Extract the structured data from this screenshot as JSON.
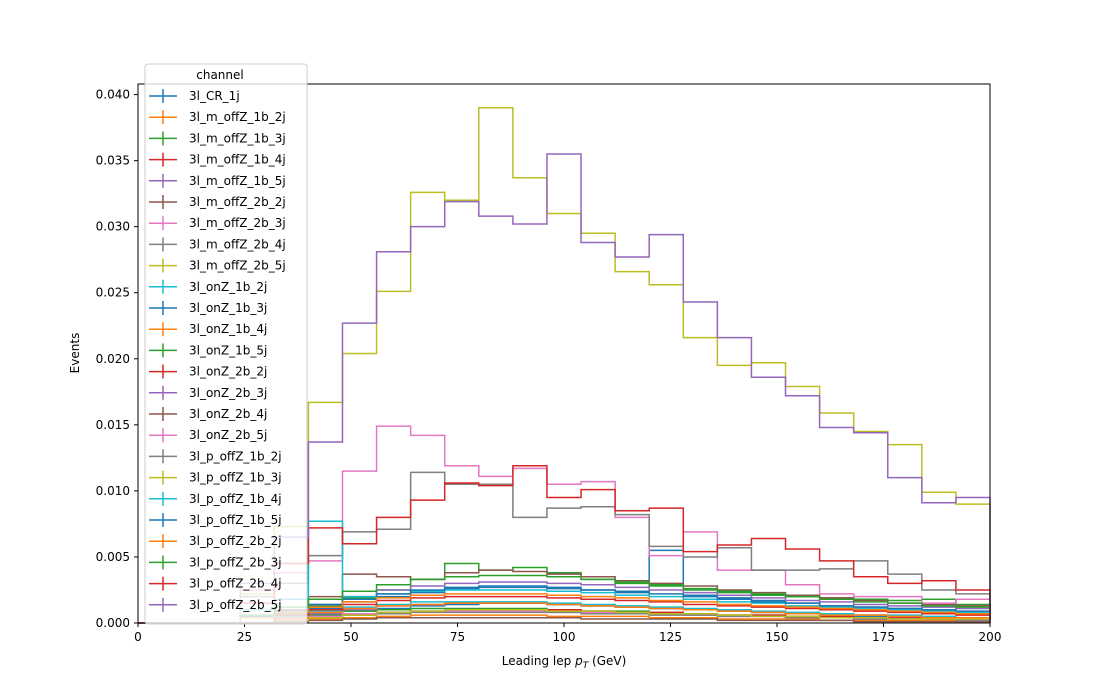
{
  "chart_data": {
    "type": "line",
    "style": "step-histogram",
    "xlabel_prefix": "Leading lep ",
    "xlabel_var": "p",
    "xlabel_sub": "T",
    "xlabel_suffix": " (GeV)",
    "ylabel": "Events",
    "xlim": [
      0,
      200
    ],
    "ylim": [
      0,
      0.0408
    ],
    "xticks": [
      0,
      25,
      50,
      75,
      100,
      125,
      150,
      175,
      200
    ],
    "yticks": [
      0.0,
      0.005,
      0.01,
      0.015,
      0.02,
      0.025,
      0.03,
      0.035,
      0.04
    ],
    "ytick_labels": [
      "0.000",
      "0.005",
      "0.010",
      "0.015",
      "0.020",
      "0.025",
      "0.030",
      "0.035",
      "0.040"
    ],
    "grid": false,
    "legend_title": "channel",
    "legend_position": "upper-left",
    "bin_edges": [
      0,
      8,
      16,
      24,
      32,
      40,
      48,
      56,
      64,
      72,
      80,
      88,
      96,
      104,
      112,
      120,
      128,
      136,
      144,
      152,
      160,
      168,
      176,
      184,
      192,
      200
    ],
    "series": [
      {
        "name": "3l_CR_1j",
        "color": "#1f77b4",
        "values": [
          0,
          0,
          0,
          0,
          0.0003,
          0.0005,
          0.0009,
          0.0011,
          0.0013,
          0.0014,
          0.0015,
          0.0015,
          0.0014,
          0.0013,
          0.0012,
          0.0011,
          0.001,
          0.0009,
          0.0008,
          0.0007,
          0.0006,
          0.0005,
          0.0005,
          0.0004,
          0.0004
        ]
      },
      {
        "name": "3l_m_offZ_1b_2j",
        "color": "#ff7f0e",
        "values": [
          0,
          0,
          0,
          0,
          0.0002,
          0.0003,
          0.0004,
          0.0005,
          0.0006,
          0.0006,
          0.0006,
          0.0006,
          0.0005,
          0.0005,
          0.0005,
          0.0004,
          0.0004,
          0.0003,
          0.0003,
          0.0003,
          0.0002,
          0.0002,
          0.0002,
          0.0002,
          0.0001
        ]
      },
      {
        "name": "3l_m_offZ_1b_3j",
        "color": "#2ca02c",
        "values": [
          0,
          0,
          0,
          0,
          0.0003,
          0.0006,
          0.0009,
          0.001,
          0.0011,
          0.0011,
          0.0011,
          0.0011,
          0.001,
          0.0009,
          0.0009,
          0.0008,
          0.0007,
          0.0006,
          0.0006,
          0.0005,
          0.0005,
          0.0004,
          0.0004,
          0.0003,
          0.0003
        ]
      },
      {
        "name": "3l_m_offZ_1b_4j",
        "color": "#d62728",
        "values": [
          0,
          0,
          0,
          0,
          0.0002,
          0.0004,
          0.0006,
          0.0008,
          0.0009,
          0.001,
          0.001,
          0.001,
          0.001,
          0.0009,
          0.0008,
          0.0008,
          0.0007,
          0.0006,
          0.0006,
          0.0005,
          0.0005,
          0.0004,
          0.0004,
          0.0003,
          0.0003
        ]
      },
      {
        "name": "3l_m_offZ_1b_5j",
        "color": "#9467bd",
        "values": [
          0,
          0,
          0,
          0,
          0.0004,
          0.0007,
          0.001,
          0.0013,
          0.0014,
          0.0015,
          0.0015,
          0.0015,
          0.0014,
          0.0013,
          0.0012,
          0.0011,
          0.001,
          0.0009,
          0.0008,
          0.0007,
          0.0006,
          0.0006,
          0.0005,
          0.0004,
          0.0004
        ]
      },
      {
        "name": "3l_m_offZ_2b_2j",
        "color": "#8c564b",
        "values": [
          0,
          0,
          0,
          0,
          0.0001,
          0.0002,
          0.0003,
          0.0004,
          0.0004,
          0.0004,
          0.0004,
          0.0004,
          0.0004,
          0.0003,
          0.0003,
          0.0003,
          0.0003,
          0.0002,
          0.0002,
          0.0002,
          0.0002,
          0.0001,
          0.0001,
          0.0001,
          0.0001
        ]
      },
      {
        "name": "3l_m_offZ_2b_3j",
        "color": "#e377c2",
        "values": [
          0,
          0,
          0,
          0,
          0.0003,
          0.0005,
          0.0007,
          0.0008,
          0.0009,
          0.0009,
          0.0009,
          0.0009,
          0.0008,
          0.0008,
          0.0007,
          0.0007,
          0.0006,
          0.0005,
          0.0005,
          0.0004,
          0.0004,
          0.0003,
          0.0003,
          0.0003,
          0.0002
        ]
      },
      {
        "name": "3l_m_offZ_2b_4j",
        "color": "#7f7f7f",
        "values": [
          0,
          0,
          0,
          0,
          0.0002,
          0.0004,
          0.0006,
          0.0007,
          0.0008,
          0.0008,
          0.0008,
          0.0008,
          0.0008,
          0.0007,
          0.0007,
          0.0006,
          0.0006,
          0.0005,
          0.0005,
          0.0004,
          0.0004,
          0.0003,
          0.0003,
          0.0003,
          0.0002
        ]
      },
      {
        "name": "3l_m_offZ_2b_5j",
        "color": "#bcbd22",
        "values": [
          0,
          0,
          0,
          0,
          0.0002,
          0.0004,
          0.0006,
          0.0008,
          0.0009,
          0.001,
          0.001,
          0.001,
          0.0009,
          0.0009,
          0.0008,
          0.0007,
          0.0007,
          0.0006,
          0.0005,
          0.0005,
          0.0004,
          0.0004,
          0.0003,
          0.0003,
          0.0003
        ]
      },
      {
        "name": "3l_onZ_1b_2j",
        "color": "#17becf",
        "values": [
          0,
          0,
          0,
          0,
          0.0005,
          0.0009,
          0.0012,
          0.0014,
          0.0016,
          0.0016,
          0.0016,
          0.0016,
          0.0015,
          0.0014,
          0.0013,
          0.0012,
          0.0011,
          0.001,
          0.0009,
          0.0008,
          0.0007,
          0.0006,
          0.0006,
          0.0005,
          0.0004
        ]
      },
      {
        "name": "3l_onZ_1b_3j",
        "color": "#1f77b4",
        "values": [
          0,
          0,
          0,
          0,
          0.0006,
          0.0011,
          0.0016,
          0.002,
          0.0023,
          0.0026,
          0.0027,
          0.0027,
          0.0026,
          0.0025,
          0.0023,
          0.0055,
          0.0021,
          0.0019,
          0.0017,
          0.0015,
          0.0013,
          0.0012,
          0.0011,
          0.0009,
          0.0008
        ]
      },
      {
        "name": "3l_onZ_1b_4j",
        "color": "#ff7f0e",
        "values": [
          0,
          0,
          0,
          0,
          0.0004,
          0.0008,
          0.0011,
          0.0013,
          0.0014,
          0.0015,
          0.0015,
          0.0015,
          0.0014,
          0.0013,
          0.0012,
          0.0011,
          0.001,
          0.0009,
          0.0008,
          0.0007,
          0.0006,
          0.0006,
          0.0005,
          0.0004,
          0.0004
        ]
      },
      {
        "name": "3l_onZ_1b_5j",
        "color": "#2ca02c",
        "values": [
          0,
          0,
          0,
          0,
          0.0007,
          0.0013,
          0.0019,
          0.0025,
          0.0033,
          0.0045,
          0.004,
          0.0042,
          0.0038,
          0.0033,
          0.003,
          0.0028,
          0.0025,
          0.0023,
          0.0021,
          0.002,
          0.0019,
          0.0018,
          0.0017,
          0.0018,
          0.0014
        ]
      },
      {
        "name": "3l_onZ_2b_2j",
        "color": "#d62728",
        "values": [
          0,
          0,
          0,
          0,
          0.0006,
          0.001,
          0.0014,
          0.0017,
          0.0019,
          0.002,
          0.002,
          0.002,
          0.0019,
          0.0018,
          0.0017,
          0.0016,
          0.0014,
          0.0013,
          0.0012,
          0.0011,
          0.001,
          0.0009,
          0.0008,
          0.0007,
          0.0006
        ]
      },
      {
        "name": "3l_onZ_2b_3j",
        "color": "#9467bd",
        "values": [
          0,
          0,
          0,
          0,
          0.0008,
          0.0014,
          0.002,
          0.0025,
          0.0028,
          0.003,
          0.0031,
          0.0031,
          0.003,
          0.0029,
          0.0027,
          0.0025,
          0.0023,
          0.0021,
          0.0019,
          0.0017,
          0.0016,
          0.0014,
          0.0013,
          0.0012,
          0.0011
        ]
      },
      {
        "name": "3l_onZ_2b_4j",
        "color": "#8c564b",
        "values": [
          0,
          0,
          0,
          0,
          0.001,
          0.002,
          0.0037,
          0.0035,
          0.0033,
          0.0038,
          0.004,
          0.0039,
          0.0037,
          0.0035,
          0.0032,
          0.003,
          0.0028,
          0.0025,
          0.0023,
          0.0021,
          0.0019,
          0.0017,
          0.0015,
          0.0014,
          0.0013
        ]
      },
      {
        "name": "3l_onZ_2b_5j",
        "color": "#e377c2",
        "values": [
          0,
          0,
          0,
          0.0025,
          0.0038,
          0.0047,
          0.0115,
          0.0149,
          0.0142,
          0.0119,
          0.0111,
          0.0117,
          0.0105,
          0.0107,
          0.008,
          0.0051,
          0.0069,
          0.004,
          0.004,
          0.0029,
          0.0022,
          0.002,
          0.002,
          0.0015,
          0.0018
        ]
      },
      {
        "name": "3l_p_offZ_1b_2j",
        "color": "#7f7f7f",
        "values": [
          0,
          0,
          0,
          0.002,
          0.003,
          0.0051,
          0.0069,
          0.0071,
          0.0114,
          0.0105,
          0.0105,
          0.008,
          0.0087,
          0.0088,
          0.0082,
          0.0058,
          0.005,
          0.0057,
          0.004,
          0.004,
          0.0041,
          0.0047,
          0.0037,
          0.0025,
          0.0022
        ]
      },
      {
        "name": "3l_p_offZ_1b_3j",
        "color": "#bcbd22",
        "values": [
          0,
          0,
          0,
          0.0022,
          0.0073,
          0.0167,
          0.0204,
          0.0251,
          0.0326,
          0.032,
          0.039,
          0.0337,
          0.031,
          0.0295,
          0.0266,
          0.0256,
          0.0216,
          0.0195,
          0.0197,
          0.0179,
          0.0159,
          0.0145,
          0.0135,
          0.0099,
          0.009
        ]
      },
      {
        "name": "3l_p_offZ_1b_4j",
        "color": "#17becf",
        "values": [
          0,
          0,
          0,
          0.001,
          0.0018,
          0.0077,
          0.002,
          0.0022,
          0.0024,
          0.0025,
          0.0025,
          0.0025,
          0.0024,
          0.0023,
          0.0021,
          0.002,
          0.0018,
          0.0016,
          0.0015,
          0.0013,
          0.0012,
          0.0011,
          0.001,
          0.0009,
          0.0008
        ]
      },
      {
        "name": "3l_p_offZ_1b_5j",
        "color": "#1f77b4",
        "values": [
          0,
          0,
          0,
          0.0005,
          0.0009,
          0.0014,
          0.0018,
          0.0022,
          0.0025,
          0.0027,
          0.0028,
          0.0028,
          0.0027,
          0.0025,
          0.0024,
          0.0022,
          0.002,
          0.0018,
          0.0016,
          0.0015,
          0.0013,
          0.0012,
          0.0011,
          0.001,
          0.0009
        ]
      },
      {
        "name": "3l_p_offZ_2b_2j",
        "color": "#ff7f0e",
        "values": [
          0,
          0,
          0,
          0.0004,
          0.0008,
          0.0012,
          0.0016,
          0.0019,
          0.0021,
          0.0022,
          0.0022,
          0.0022,
          0.0021,
          0.002,
          0.0019,
          0.0017,
          0.0016,
          0.0014,
          0.0013,
          0.0012,
          0.0011,
          0.001,
          0.0009,
          0.0008,
          0.0007
        ]
      },
      {
        "name": "3l_p_offZ_2b_3j",
        "color": "#2ca02c",
        "values": [
          0,
          0,
          0,
          0.0006,
          0.0012,
          0.0018,
          0.0024,
          0.0029,
          0.0033,
          0.0035,
          0.0036,
          0.0036,
          0.0035,
          0.0033,
          0.0031,
          0.0029,
          0.0026,
          0.0024,
          0.0022,
          0.002,
          0.0018,
          0.0016,
          0.0015,
          0.0013,
          0.0012
        ]
      },
      {
        "name": "3l_p_offZ_2b_4j",
        "color": "#d62728",
        "values": [
          0,
          0,
          0,
          0.0015,
          0.0045,
          0.0072,
          0.006,
          0.008,
          0.0093,
          0.0106,
          0.0104,
          0.0119,
          0.0095,
          0.0101,
          0.0085,
          0.0087,
          0.0054,
          0.0059,
          0.0064,
          0.0056,
          0.0047,
          0.0035,
          0.003,
          0.0032,
          0.0025
        ]
      },
      {
        "name": "3l_p_offZ_2b_5j",
        "color": "#9467bd",
        "values": [
          0,
          0,
          0,
          0.003,
          0.0065,
          0.0137,
          0.0227,
          0.0281,
          0.03,
          0.0319,
          0.0308,
          0.0302,
          0.0355,
          0.0288,
          0.0277,
          0.0294,
          0.0243,
          0.0216,
          0.0186,
          0.0172,
          0.0148,
          0.0144,
          0.011,
          0.0091,
          0.0095
        ]
      }
    ]
  }
}
